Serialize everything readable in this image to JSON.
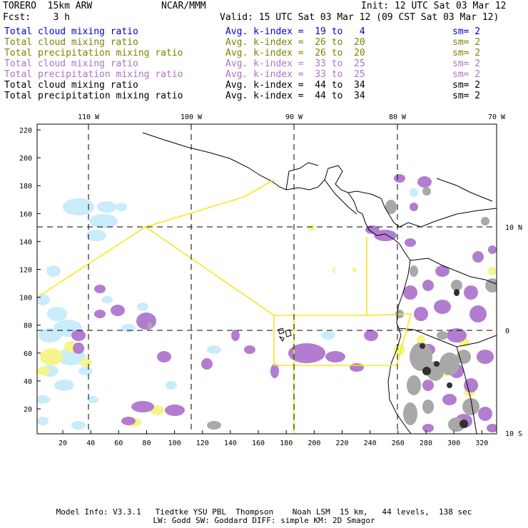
{
  "header": {
    "model": "TORERO  15km ARW",
    "center": "NCAR/MMM",
    "init": "Init: 12 UTC Sat 03 Mar 12",
    "fcst": "Fcst:    3 h",
    "valid": "Valid: 15 UTC Sat 03 Mar 12 (09 CST Sat 03 Mar 12)"
  },
  "fields": [
    {
      "name": "Total cloud mixing ratio",
      "kindex": "Avg. k-index =  19 to   4",
      "sm": "sm= 2",
      "color": "#0000cc"
    },
    {
      "name": "Total cloud mixing ratio",
      "kindex": "Avg. k-index =  26 to  20",
      "sm": "sm= 2",
      "color": "#808000"
    },
    {
      "name": "Total precipitation mixing ratio",
      "kindex": "Avg. k-index =  26 to  20",
      "sm": "sm= 2",
      "color": "#808000"
    },
    {
      "name": "Total cloud mixing ratio",
      "kindex": "Avg. k-index =  33 to  25",
      "sm": "sm= 2",
      "color": "#b070c8"
    },
    {
      "name": "Total precipitation mixing ratio",
      "kindex": "Avg. k-index =  33 to  25",
      "sm": "sm= 2",
      "color": "#b070c8"
    },
    {
      "name": "Total cloud mixing ratio",
      "kindex": "Avg. k-index =  44 to  34",
      "sm": "sm= 2",
      "color": "#000000"
    },
    {
      "name": "Total precipitation mixing ratio",
      "kindex": "Avg. k-index =  44 to  34",
      "sm": "sm= 2",
      "color": "#000000"
    }
  ],
  "map": {
    "top_lon_labels": [
      "110 W",
      "100 W",
      "90 W",
      "80 W",
      "70 W"
    ],
    "right_lat_labels": [
      "10 N",
      "0",
      "10 S"
    ],
    "y_ticks": [
      "220",
      "200",
      "180",
      "160",
      "140",
      "120",
      "100",
      "80",
      "60",
      "40",
      "20"
    ],
    "x_ticks": [
      "20",
      "40",
      "60",
      "80",
      "100",
      "120",
      "140",
      "160",
      "180",
      "200",
      "220",
      "240",
      "260",
      "280",
      "300",
      "320"
    ],
    "region_labels": [
      "C",
      "R"
    ],
    "colors": {
      "light_cloud": "#c8ecfa",
      "yellow_cloud": "#f5f58a",
      "purple_precip": "#b27cd0",
      "gray_cloud": "#a8a8a8",
      "dark_cloud": "#303030",
      "yellow_boundary": "#f5e81e",
      "grid": "#000000"
    }
  },
  "footer": {
    "line1": "Model Info: V3.3.1   Tiedtke YSU PBL  Thompson    Noah LSM  15 km,   44 levels,  138 sec",
    "line2": "LW: Godd SW: Goddard DIFF: simple KM: 2D Smagor"
  }
}
